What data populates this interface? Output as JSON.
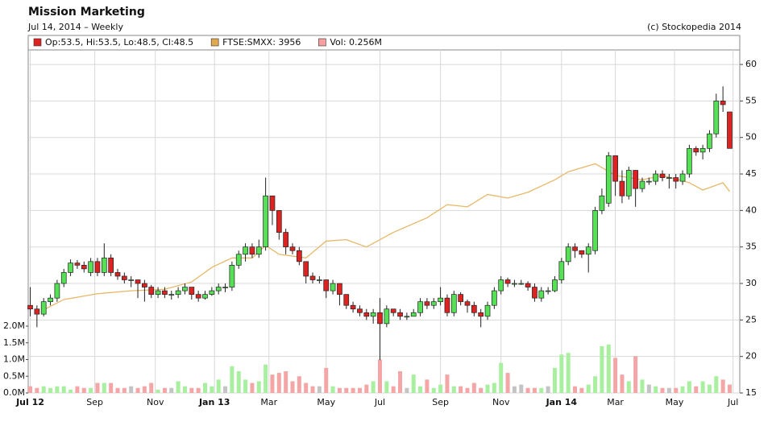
{
  "chart_data": {
    "type": "candlestick",
    "title": "Mission Marketing",
    "subtitle": "Jul 14, 2014 – Weekly",
    "credit": "(c) Stockopedia 2014",
    "legend": [
      {
        "text": "Op:53.5, Hi:53.5, Lo:48.5, Cl:48.5",
        "color": "#dd2222"
      },
      {
        "text": "FTSE:SMXX: 3956",
        "color": "#e0a850"
      },
      {
        "text": "Vol: 0.256M",
        "color": "#f4a0a0"
      }
    ],
    "up_color": "#55e055",
    "down_color": "#dd2222",
    "volume_up_color": "#a8f0a0",
    "volume_down_color": "#f4a6a6",
    "volume_flat_color": "#c4c4c4",
    "ftse_color": "#e8b868",
    "grid": true,
    "xlim": [
      -0.3,
      105.5
    ],
    "xticks": [
      {
        "value": 0,
        "label": "Jul 12"
      },
      {
        "value": 9.6,
        "label": "Sep"
      },
      {
        "value": 18.6,
        "label": "Nov"
      },
      {
        "value": 27.4,
        "label": "Jan 13"
      },
      {
        "value": 35.5,
        "label": "Mar"
      },
      {
        "value": 44,
        "label": "May"
      },
      {
        "value": 52,
        "label": "Jul"
      },
      {
        "value": 61,
        "label": "Sep"
      },
      {
        "value": 70,
        "label": "Nov"
      },
      {
        "value": 79,
        "label": "Jan 14"
      },
      {
        "value": 87,
        "label": "Mar"
      },
      {
        "value": 95.8,
        "label": "May"
      },
      {
        "value": 104.5,
        "label": "Jul"
      }
    ],
    "ylim": [
      15,
      61
    ],
    "yticks": [
      15,
      20,
      25,
      30,
      35,
      40,
      45,
      50,
      55,
      60
    ],
    "vol_ylim": [
      0,
      2
    ],
    "vol_yticks": [
      {
        "value": 0,
        "label": "0.0M"
      },
      {
        "value": 0.5,
        "label": "0.5M"
      },
      {
        "value": 1,
        "label": "1.0M"
      },
      {
        "value": 1.5,
        "label": "1.5M"
      },
      {
        "value": 2,
        "label": "2.0M"
      }
    ],
    "open": [
      27,
      26.5,
      25.8,
      27.5,
      28,
      30,
      31.5,
      32.8,
      32.5,
      31.5,
      33,
      31.5,
      33.5,
      31.5,
      31,
      30.5,
      30.5,
      30,
      29.5,
      28.5,
      29,
      28.5,
      28.5,
      29,
      29.5,
      28.5,
      28,
      28.5,
      29,
      29.5,
      29.5,
      32.5,
      34,
      35,
      34,
      35,
      42,
      40,
      37,
      35,
      34.5,
      33,
      31,
      30.5,
      30.5,
      29,
      30,
      28.5,
      27,
      26.5,
      26,
      25.5,
      26,
      24.5,
      26.5,
      26,
      25.5,
      25.5,
      26,
      27.5,
      27,
      27.5,
      28,
      26,
      28.5,
      27.5,
      27,
      26,
      25.5,
      27,
      29,
      30.5,
      30,
      30,
      30,
      29.5,
      28,
      29,
      29,
      30.5,
      33,
      35,
      34.5,
      34,
      34.5,
      40,
      41,
      47.5,
      44,
      42,
      45.5,
      43,
      44,
      44,
      45,
      44.5,
      44.5,
      44,
      45,
      48.5,
      48,
      48.5,
      50.5,
      55,
      53.5
    ],
    "high": [
      29.5,
      27,
      28,
      28.5,
      30.5,
      32,
      33.3,
      33.2,
      33,
      33.5,
      33.5,
      35.5,
      34,
      32,
      31.5,
      31,
      30.5,
      30.5,
      29.8,
      29.5,
      29.5,
      29,
      29.5,
      30,
      29.5,
      29,
      29,
      29.5,
      30,
      30,
      33,
      34.5,
      35.5,
      35.5,
      36,
      44.5,
      42,
      40,
      37.5,
      35.5,
      35,
      33,
      31.5,
      31,
      30.5,
      30.5,
      30,
      28.5,
      27.5,
      27,
      26.5,
      26.5,
      28,
      27,
      26.5,
      26.5,
      26,
      26.5,
      28,
      28,
      28,
      29.5,
      28.5,
      29,
      28.8,
      27.8,
      27.5,
      26.5,
      27.5,
      29.5,
      31,
      30.8,
      30.5,
      30.5,
      30.3,
      30,
      29.5,
      29.5,
      31,
      33.5,
      35.5,
      35.5,
      34.5,
      35.5,
      40.5,
      43,
      48,
      47.5,
      45.5,
      46,
      45.5,
      44.5,
      44.5,
      45.5,
      45.5,
      45,
      45,
      45.5,
      49,
      48.8,
      49,
      51,
      56,
      57,
      53.5
    ],
    "low": [
      25.5,
      24,
      25.5,
      27,
      27.5,
      29.5,
      31,
      32,
      31.5,
      31,
      31,
      31,
      31,
      30.5,
      30,
      29.5,
      28,
      27.5,
      28,
      28,
      28,
      27.8,
      28,
      28.5,
      27.8,
      27.5,
      27.8,
      28.3,
      28.5,
      28.8,
      29,
      32,
      33,
      33.5,
      33.5,
      34.5,
      38,
      36,
      34,
      34,
      32.5,
      30,
      30,
      30,
      28,
      28.5,
      27,
      26.5,
      26,
      25.5,
      25,
      24.5,
      19.5,
      24,
      25.5,
      25,
      25,
      25.5,
      25.5,
      26.5,
      26.5,
      27,
      25.5,
      25.5,
      27,
      26,
      25.5,
      24,
      25,
      26.5,
      28.5,
      29.5,
      29.5,
      29.8,
      29,
      27.5,
      27.5,
      28.5,
      28.8,
      30,
      32.5,
      33.5,
      33.5,
      31.5,
      34,
      39.5,
      40.5,
      42,
      41,
      41.5,
      40.5,
      42.5,
      43.5,
      43.5,
      44,
      43,
      43,
      43.5,
      44.5,
      47.5,
      47,
      48,
      50,
      53.5,
      48.5
    ],
    "close": [
      26.5,
      25.8,
      27.5,
      28,
      30,
      31.5,
      32.8,
      32.5,
      32,
      33,
      31.5,
      33.5,
      31.5,
      31,
      30.5,
      30.5,
      30,
      29.5,
      28.5,
      29,
      28.5,
      28.5,
      29,
      29.5,
      28.5,
      28,
      28.5,
      29,
      29.5,
      29.5,
      32.5,
      34,
      35,
      34,
      35,
      42,
      40,
      37,
      35,
      34.5,
      33,
      31,
      30.5,
      30.5,
      29,
      30,
      28.5,
      27,
      26.5,
      26,
      25.5,
      26,
      24.5,
      26.5,
      26,
      25.5,
      25.5,
      26,
      27.5,
      27,
      27.5,
      28,
      26,
      28.5,
      27.5,
      27,
      26,
      25.5,
      27,
      29,
      30.5,
      30,
      30,
      30,
      29.5,
      28,
      29,
      29,
      30.5,
      33,
      35,
      34.5,
      34,
      35,
      40,
      42,
      47.5,
      44,
      42,
      45.5,
      43,
      44,
      44,
      45,
      44.5,
      44.5,
      44,
      45,
      48.5,
      48,
      48.5,
      50.5,
      55,
      54.5,
      48.5
    ],
    "volume": [
      0.2,
      0.15,
      0.2,
      0.15,
      0.2,
      0.2,
      0.1,
      0.2,
      0.15,
      0.15,
      0.3,
      0.3,
      0.3,
      0.15,
      0.15,
      0.2,
      0.15,
      0.2,
      0.3,
      0.1,
      0.15,
      0.15,
      0.35,
      0.2,
      0.15,
      0.15,
      0.3,
      0.2,
      0.4,
      0.2,
      0.8,
      0.65,
      0.4,
      0.3,
      0.35,
      0.85,
      0.55,
      0.6,
      0.65,
      0.35,
      0.5,
      0.3,
      0.2,
      0.2,
      0.75,
      0.2,
      0.15,
      0.15,
      0.15,
      0.15,
      0.25,
      0.35,
      1.0,
      0.35,
      0.2,
      0.65,
      0.15,
      0.55,
      0.2,
      0.4,
      0.15,
      0.25,
      0.55,
      0.2,
      0.2,
      0.15,
      0.3,
      0.15,
      0.25,
      0.3,
      0.9,
      0.6,
      0.2,
      0.25,
      0.15,
      0.15,
      0.15,
      0.2,
      0.75,
      1.15,
      1.2,
      0.2,
      0.15,
      0.25,
      0.5,
      1.4,
      1.45,
      1.05,
      0.55,
      0.35,
      1.1,
      0.4,
      0.25,
      0.2,
      0.15,
      0.15,
      0.15,
      0.2,
      0.35,
      0.2,
      0.35,
      0.25,
      0.5,
      0.4,
      0.25
    ],
    "ftse": {
      "x": [
        2,
        5,
        10,
        15,
        20,
        24,
        27,
        30,
        33,
        35,
        37,
        41,
        44,
        47,
        50,
        54,
        59,
        62,
        65,
        68,
        71,
        74,
        78,
        80,
        84,
        87,
        91,
        94,
        98,
        100,
        103,
        104
      ],
      "values": [
        26.4,
        27.8,
        28.6,
        29,
        29.2,
        30.2,
        32.2,
        33.5,
        33.5,
        35.2,
        34,
        33.5,
        35.8,
        36,
        35,
        37,
        39,
        40.8,
        40.5,
        42.2,
        41.7,
        42.5,
        44.2,
        45.3,
        46.4,
        44.8,
        44.2,
        44.8,
        43.8,
        42.8,
        43.8,
        42.6
      ]
    }
  }
}
